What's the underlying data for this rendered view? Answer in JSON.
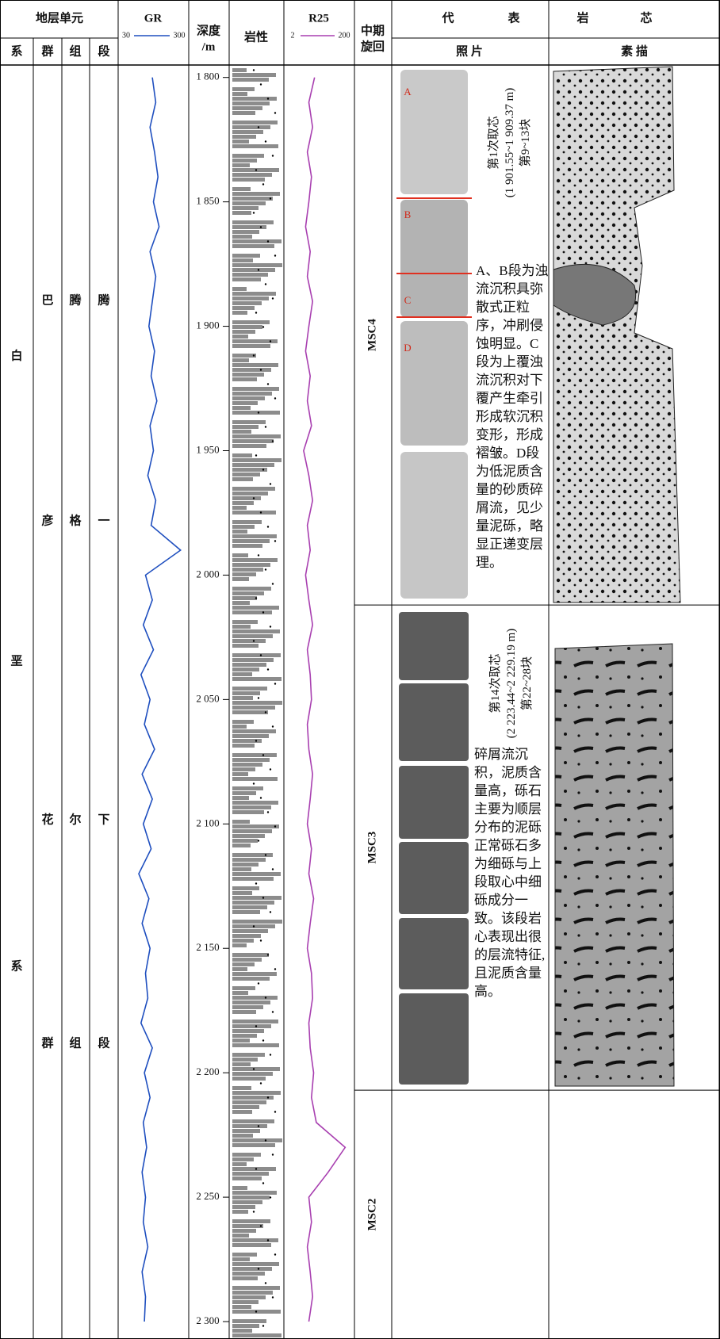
{
  "header": {
    "strat_unit": "地层单元",
    "system": "系",
    "group": "群",
    "formation": "组",
    "member": "段",
    "depth": "深度",
    "depth_unit": "/m",
    "lithology": "岩性",
    "cycle_1": "中期",
    "cycle_2": "旋回",
    "core": [
      "代",
      "表",
      "岩",
      "芯"
    ],
    "photo": "照 片",
    "sketch": "素 描"
  },
  "strata": {
    "system": [
      "白",
      "垩",
      "系"
    ],
    "group": [
      "巴",
      "彦",
      "花",
      "群"
    ],
    "formation": [
      "腾",
      "格",
      "尔",
      "组"
    ],
    "member": [
      "腾",
      "一",
      "下",
      "段"
    ]
  },
  "depth_axis": {
    "lim": [
      1795,
      2307
    ],
    "ticks": [
      {
        "value": 1800,
        "label": "1 800"
      },
      {
        "value": 1850,
        "label": "1 850"
      },
      {
        "value": 1900,
        "label": "1 900"
      },
      {
        "value": 1950,
        "label": "1 950"
      },
      {
        "value": 2000,
        "label": "2 000"
      },
      {
        "value": 2050,
        "label": "2 050"
      },
      {
        "value": 2100,
        "label": "2 100"
      },
      {
        "value": 2150,
        "label": "2 150"
      },
      {
        "value": 2200,
        "label": "2 200"
      },
      {
        "value": 2250,
        "label": "2 250"
      },
      {
        "value": 2300,
        "label": "2 300"
      }
    ]
  },
  "logs": {
    "depth": [
      1800,
      1810,
      1820,
      1830,
      1840,
      1850,
      1860,
      1870,
      1880,
      1890,
      1900,
      1910,
      1920,
      1930,
      1940,
      1950,
      1960,
      1970,
      1980,
      1990,
      2000,
      2010,
      2020,
      2030,
      2040,
      2050,
      2060,
      2070,
      2080,
      2090,
      2100,
      2110,
      2120,
      2130,
      2140,
      2150,
      2160,
      2170,
      2180,
      2190,
      2200,
      2210,
      2220,
      2230,
      2240,
      2250,
      2260,
      2270,
      2280,
      2290,
      2300
    ],
    "gr": {
      "name": "GR",
      "color": "#1f4fbf",
      "range": [
        30,
        300
      ],
      "values": [
        160,
        175,
        150,
        170,
        185,
        165,
        190,
        150,
        175,
        160,
        145,
        170,
        155,
        180,
        150,
        165,
        140,
        175,
        155,
        285,
        130,
        160,
        120,
        165,
        110,
        150,
        125,
        170,
        115,
        160,
        120,
        155,
        100,
        145,
        115,
        150,
        130,
        140,
        110,
        160,
        125,
        150,
        120,
        135,
        115,
        130,
        120,
        140,
        115,
        130,
        125
      ]
    },
    "r25": {
      "name": "R25",
      "color": "#a83fb0",
      "range": [
        2,
        200
      ],
      "log": true,
      "values": [
        14,
        9,
        12,
        8,
        11,
        9,
        7,
        10,
        8,
        12,
        9,
        7,
        10,
        8,
        11,
        6,
        9,
        12,
        8,
        10,
        7,
        9,
        12,
        8,
        10,
        11,
        8,
        9,
        12,
        10,
        8,
        11,
        9,
        13,
        10,
        8,
        11,
        12,
        9,
        10,
        13,
        11,
        16,
        150,
        40,
        9,
        11,
        8,
        10,
        12,
        9
      ]
    }
  },
  "cycles": [
    {
      "name": "MSC4",
      "top": 1795,
      "base": 2012
    },
    {
      "name": "MSC3",
      "top": 2012,
      "base": 2207
    },
    {
      "name": "MSC2",
      "top": 2207,
      "base": 2307
    }
  ],
  "cores": [
    {
      "labels": [
        "A",
        "B",
        "C",
        "D"
      ],
      "title": "第1次取芯",
      "range": "(1 901.55~1 909.37 m)",
      "pieces": "第9~13块",
      "description": "A、B段为浊流沉积具弥散式正粒序，冲刷侵蚀明显。C段为上覆浊流沉积对下覆产生牵引形成软沉积变形，形成褶皱。D段为低泥质含量的砂质碎屑流，见少量泥砾，略显正递变层理。"
    },
    {
      "title": "第14次取芯",
      "range": "(2 223.44~2 229.19 m)",
      "pieces": "第22~28块",
      "description": "碎屑流沉积，泥质含量高，砾石主要为顺层分布的泥砾正常砾石多为细砾与上段取心中细砾成分一致。该段岩心表现出很的层流特征,且泥质含量高。"
    }
  ]
}
